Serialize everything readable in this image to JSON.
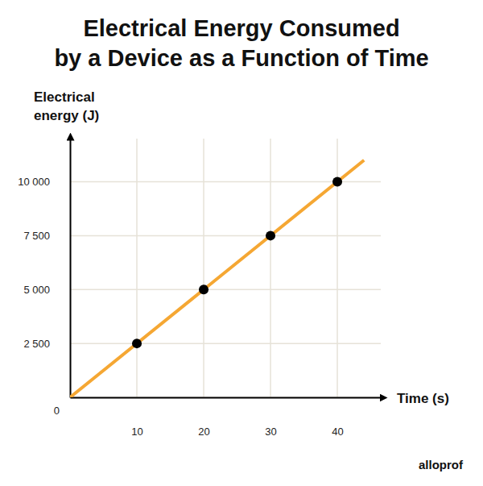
{
  "chart_data": {
    "type": "line",
    "title": "Electrical Energy Consumed by a Device as a Function of Time",
    "x_label": "Time (s)",
    "y_label": "Electrical energy (J)",
    "xlim": [
      0,
      46.5
    ],
    "ylim": [
      0,
      12000
    ],
    "xticks": [
      10,
      20,
      30,
      40
    ],
    "yticks": [
      0,
      {
        "value": 2500,
        "label": "2 500"
      },
      {
        "value": 5000,
        "label": "5 000"
      },
      {
        "value": 7500,
        "label": "7 500"
      },
      {
        "value": 10000,
        "label": "10 000"
      }
    ],
    "grid": true,
    "series": [
      {
        "type": "line",
        "color": "#f5a733",
        "x": [
          0,
          44
        ],
        "values": [
          0,
          11000
        ]
      },
      {
        "type": "scatter",
        "color": "#000000",
        "marker": "circle",
        "x": [
          10,
          20,
          30,
          40
        ],
        "values": [
          2500,
          5000,
          7500,
          10000
        ]
      }
    ],
    "annotations": [
      "alloprof"
    ]
  }
}
